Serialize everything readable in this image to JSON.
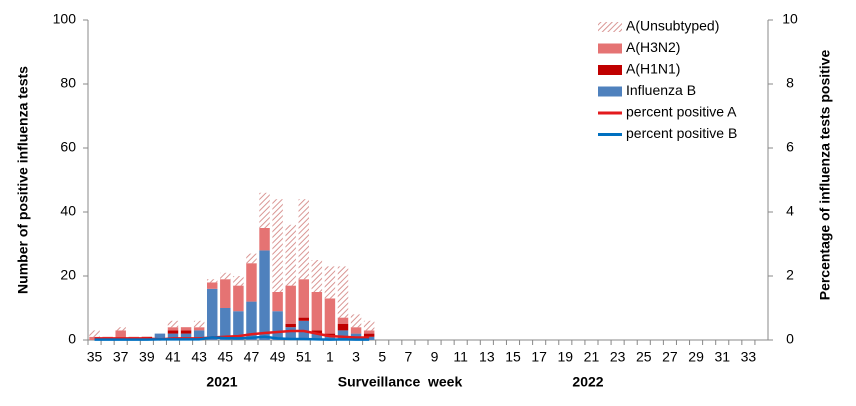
{
  "chart_data": {
    "type": "bar",
    "stacked": true,
    "y_label": "Number of positive influenza tests",
    "y2_label": "Percentage of influenza tests positive",
    "x_label": "Surveillance  week",
    "annotations": [
      "2021",
      "2022"
    ],
    "categories": [
      "35",
      null,
      "37",
      null,
      "39",
      null,
      "41",
      null,
      "43",
      null,
      "45",
      null,
      "47",
      null,
      "49",
      null,
      "51",
      null,
      "1",
      null,
      "3",
      null,
      "5",
      null,
      "7",
      null,
      "9",
      null,
      "11",
      null,
      "13",
      null,
      "15",
      null,
      "17",
      null,
      "19",
      null,
      "21",
      null,
      "23",
      null,
      "25",
      null,
      "27",
      null,
      "29",
      null,
      "31",
      null,
      "33",
      null
    ],
    "ylim": [
      0,
      100
    ],
    "yticks": [
      0,
      20,
      40,
      60,
      80,
      100
    ],
    "y2lim": [
      0,
      10
    ],
    "y2ticks": [
      0,
      2,
      4,
      6,
      8,
      10
    ],
    "legend": "top-right",
    "series": [
      {
        "name": "A(Unsubtyped)",
        "type": "bar",
        "color": "#d99694",
        "hatch": true,
        "values": [
          2,
          0,
          1,
          0,
          0,
          0,
          2,
          0,
          2,
          1,
          2,
          3,
          3,
          11,
          29,
          19,
          25,
          10,
          10,
          16,
          4,
          3,
          null,
          null,
          null,
          null,
          null,
          null,
          null,
          null,
          null,
          null,
          null,
          null,
          null,
          null,
          null,
          null,
          null,
          null,
          null,
          null,
          null,
          null,
          null,
          null,
          null,
          null,
          null,
          null,
          null,
          null
        ]
      },
      {
        "name": "A(H3N2)",
        "type": "bar",
        "color": "#e57373",
        "values": [
          1,
          1,
          3,
          1,
          0,
          0,
          1,
          1,
          1,
          2,
          9,
          8,
          12,
          7,
          6,
          12,
          12,
          12,
          11,
          2,
          2,
          1,
          null,
          null,
          null,
          null,
          null,
          null,
          null,
          null,
          null,
          null,
          null,
          null,
          null,
          null,
          null,
          null,
          null,
          null,
          null,
          null,
          null,
          null,
          null,
          null,
          null,
          null,
          null,
          null,
          null,
          null
        ]
      },
      {
        "name": "A(H1N1)",
        "type": "bar",
        "color": "#c00000",
        "values": [
          0,
          0,
          0,
          0,
          1,
          0,
          1,
          1,
          0,
          0,
          0,
          0,
          0,
          0,
          0,
          1,
          1,
          1,
          1,
          2,
          0,
          1,
          null,
          null,
          null,
          null,
          null,
          null,
          null,
          null,
          null,
          null,
          null,
          null,
          null,
          null,
          null,
          null,
          null,
          null,
          null,
          null,
          null,
          null,
          null,
          null,
          null,
          null,
          null,
          null,
          null,
          null
        ]
      },
      {
        "name": "Influenza B",
        "type": "bar",
        "color": "#4f81bd",
        "values": [
          0,
          0,
          0,
          0,
          0,
          2,
          2,
          2,
          3,
          16,
          10,
          9,
          12,
          28,
          9,
          4,
          6,
          2,
          1,
          3,
          2,
          1,
          null,
          null,
          null,
          null,
          null,
          null,
          null,
          null,
          null,
          null,
          null,
          null,
          null,
          null,
          null,
          null,
          null,
          null,
          null,
          null,
          null,
          null,
          null,
          null,
          null,
          null,
          null,
          null,
          null,
          null
        ]
      },
      {
        "name": "percent positive A",
        "type": "line",
        "axis": "y2",
        "color": "#e31a1c",
        "values": [
          0.05,
          0.05,
          0.05,
          0.05,
          0.05,
          0.02,
          0.05,
          0.05,
          0.05,
          0.08,
          0.1,
          0.12,
          0.18,
          0.22,
          0.25,
          0.28,
          0.28,
          0.2,
          0.12,
          0.1,
          0.08,
          0.08,
          null,
          null,
          null,
          null,
          null,
          null,
          null,
          null,
          null,
          null,
          null,
          null,
          null,
          null,
          null,
          null,
          null,
          null,
          null,
          null,
          null,
          null,
          null,
          null,
          null,
          null,
          null,
          null,
          null,
          null
        ]
      },
      {
        "name": "percent positive B",
        "type": "line",
        "axis": "y2",
        "color": "#0070c0",
        "values": [
          0.01,
          0.01,
          0.01,
          0.01,
          0.01,
          0.02,
          0.02,
          0.02,
          0.02,
          0.08,
          0.06,
          0.05,
          0.07,
          0.1,
          0.05,
          0.03,
          0.03,
          0.02,
          0.01,
          0.02,
          0.01,
          0.01,
          null,
          null,
          null,
          null,
          null,
          null,
          null,
          null,
          null,
          null,
          null,
          null,
          null,
          null,
          null,
          null,
          null,
          null,
          null,
          null,
          null,
          null,
          null,
          null,
          null,
          null,
          null,
          null,
          null,
          null
        ]
      }
    ]
  }
}
